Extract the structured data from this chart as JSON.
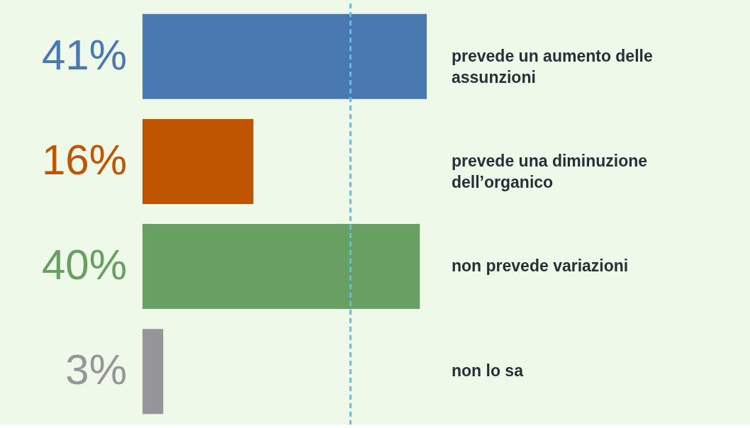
{
  "chart_data": {
    "type": "bar",
    "orientation": "horizontal",
    "categories": [
      "prevede un aumento delle assunzioni",
      "prevede una diminuzione dell’organico",
      "non prevede variazioni",
      "non lo sa"
    ],
    "values": [
      41,
      16,
      40,
      3
    ],
    "colors": [
      "#4a78b0",
      "#c05500",
      "#68a064",
      "#96969a"
    ],
    "value_labels": [
      "41%",
      "16%",
      "40%",
      "3%"
    ],
    "xlim": [
      0,
      41
    ],
    "tick_labels": false,
    "ref_lines": [
      {
        "axis": "x",
        "value": 30,
        "color": "#5bc0eb",
        "line_style": "dashed"
      }
    ]
  }
}
